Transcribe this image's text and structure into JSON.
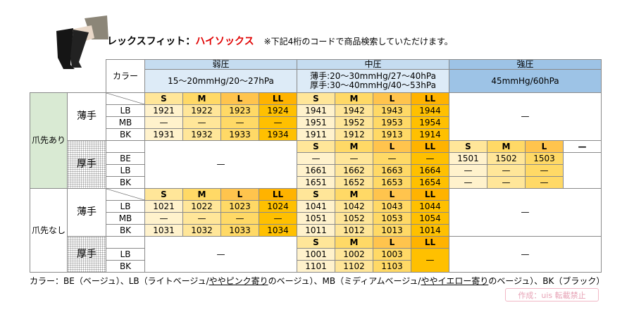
{
  "header": {
    "title": "レックスフィット：",
    "title_highlight": "ハイソックス",
    "note": "※下記4桁のコードで商品検索していただけます。"
  },
  "table": {
    "color_header": "カラー",
    "pressures": [
      {
        "name": "弱圧",
        "range": [
          "15〜20mmHg/20〜27hPa"
        ],
        "color": "#c5dcf0",
        "range_color": "#ddebf7"
      },
      {
        "name": "中圧",
        "range": [
          "薄手:20〜30mmHg/27〜40hPa",
          "厚手:30〜40mmHg/40〜53hPa"
        ],
        "color": "#c5dcf0",
        "range_color": "#ddebf7"
      },
      {
        "name": "強圧",
        "range": [
          "45mmHg/60hPa"
        ],
        "color": "#9dc3e6",
        "range_color": "#9dc3e6"
      }
    ],
    "size_colors": [
      "#ffe699",
      "#ffd966",
      "#ffc44d",
      "#ffb300"
    ],
    "code_colors": [
      "#fff2cc",
      "#ffe699",
      "#ffd966",
      "#ffc000"
    ],
    "sections": [
      {
        "name": "爪先あり",
        "color": "#d9ead3",
        "weights": [
          {
            "name": "薄手",
            "colors": [
              "LB",
              "MB",
              "BK"
            ],
            "blocks": [
              {
                "sizes": [
                  "S",
                  "M",
                  "L",
                  "LL"
                ],
                "codes": [
                  [
                    "1921",
                    "1922",
                    "1923",
                    "1924"
                  ],
                  [
                    "—",
                    "—",
                    "—",
                    "—"
                  ],
                  [
                    "1931",
                    "1932",
                    "1933",
                    "1934"
                  ]
                ]
              },
              {
                "sizes": [
                  "S",
                  "M",
                  "L",
                  "LL"
                ],
                "codes": [
                  [
                    "1941",
                    "1942",
                    "1943",
                    "1944"
                  ],
                  [
                    "1951",
                    "1952",
                    "1953",
                    "1954"
                  ],
                  [
                    "1911",
                    "1912",
                    "1913",
                    "1914"
                  ]
                ]
              },
              {
                "text": "—"
              }
            ]
          },
          {
            "name": "厚手",
            "colors": [
              "BE",
              "LB",
              "BK"
            ],
            "blocks": [
              {
                "text": "—"
              },
              {
                "sizes": [
                  "S",
                  "M",
                  "L",
                  "LL"
                ],
                "codes": [
                  [
                    "—",
                    "—",
                    "—",
                    "—"
                  ],
                  [
                    "1661",
                    "1662",
                    "1663",
                    "1664"
                  ],
                  [
                    "1651",
                    "1652",
                    "1653",
                    "1654"
                  ]
                ]
              },
              {
                "sizes": [
                  "S",
                  "M",
                  "L",
                  "—"
                ],
                "codes": [
                  [
                    "1501",
                    "1502",
                    "1503"
                  ],
                  [
                    "—",
                    "—",
                    "—"
                  ],
                  [
                    "—",
                    "—",
                    "—"
                  ]
                ]
              }
            ]
          }
        ]
      },
      {
        "name": "爪先なし",
        "color": "#ffffff",
        "weights": [
          {
            "name": "薄手",
            "colors": [
              "LB",
              "MB",
              "BK"
            ],
            "blocks": [
              {
                "sizes": [
                  "S",
                  "M",
                  "L",
                  "LL"
                ],
                "codes": [
                  [
                    "1021",
                    "1022",
                    "1023",
                    "1024"
                  ],
                  [
                    "—",
                    "—",
                    "—",
                    "—"
                  ],
                  [
                    "1031",
                    "1032",
                    "1033",
                    "1034"
                  ]
                ]
              },
              {
                "sizes": [
                  "S",
                  "M",
                  "L",
                  "LL"
                ],
                "codes": [
                  [
                    "1041",
                    "1042",
                    "1043",
                    "1044"
                  ],
                  [
                    "1051",
                    "1052",
                    "1053",
                    "1054"
                  ],
                  [
                    "1011",
                    "1012",
                    "1013",
                    "1014"
                  ]
                ]
              },
              {
                "text": "—"
              }
            ]
          },
          {
            "name": "厚手",
            "colors": [
              "LB",
              "BK"
            ],
            "blocks": [
              {
                "text": "—"
              },
              {
                "sizes": [
                  "S",
                  "M",
                  "L",
                  "LL"
                ],
                "codes": [
                  [
                    "1001",
                    "1002",
                    "1003"
                  ],
                  [
                    "1101",
                    "1102",
                    "1103"
                  ]
                ],
                "span_text": "—"
              },
              {
                "text": "—"
              }
            ]
          }
        ]
      }
    ]
  },
  "footer": {
    "parts": [
      {
        "text": "カラー：BE（ベージュ）、LB（ライトベージュ/"
      },
      {
        "text": "ややピンク寄り",
        "underline": true
      },
      {
        "text": "のベージュ）、MB（ミディアムベージュ/"
      },
      {
        "text": "ややイエロー寄り",
        "underline": true
      },
      {
        "text": "のベージュ）、BK（ブラック）"
      }
    ],
    "badge": "作成：uis 転載禁止"
  }
}
